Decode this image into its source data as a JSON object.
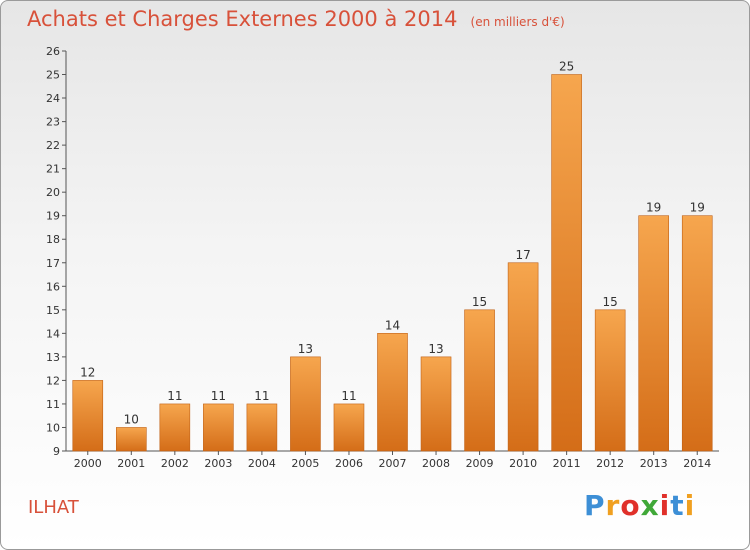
{
  "title": "Achats et Charges Externes 2000 à 2014",
  "unit_note": "(en milliers d'€)",
  "commune": "ILHAT",
  "brand": {
    "letters": [
      "P",
      "r",
      "o",
      "x",
      "i",
      "t",
      "i"
    ],
    "colors": [
      "#3d8fd6",
      "#f0a020",
      "#e0302a",
      "#40a838",
      "#e0302a",
      "#3d8fd6",
      "#f0a020"
    ]
  },
  "colors": {
    "bar_top": "#f6a64e",
    "bar_bottom": "#d46d18",
    "bar_edge": "#c06014",
    "accent": "#d8513a"
  },
  "chart_data": {
    "type": "bar",
    "title": "Achats et Charges Externes 2000 à 2014",
    "subtitle": "(en milliers d'€)",
    "categories": [
      "2000",
      "2001",
      "2002",
      "2003",
      "2004",
      "2005",
      "2006",
      "2007",
      "2008",
      "2009",
      "2010",
      "2011",
      "2012",
      "2013",
      "2014"
    ],
    "values": [
      12,
      10,
      11,
      11,
      11,
      13,
      11,
      14,
      13,
      15,
      17,
      25,
      15,
      19,
      19
    ],
    "ylim": [
      9,
      26
    ],
    "yticks": [
      9,
      10,
      11,
      12,
      13,
      14,
      15,
      16,
      17,
      18,
      19,
      20,
      21,
      22,
      23,
      24,
      25,
      26
    ],
    "grid": false,
    "legend": "none"
  }
}
